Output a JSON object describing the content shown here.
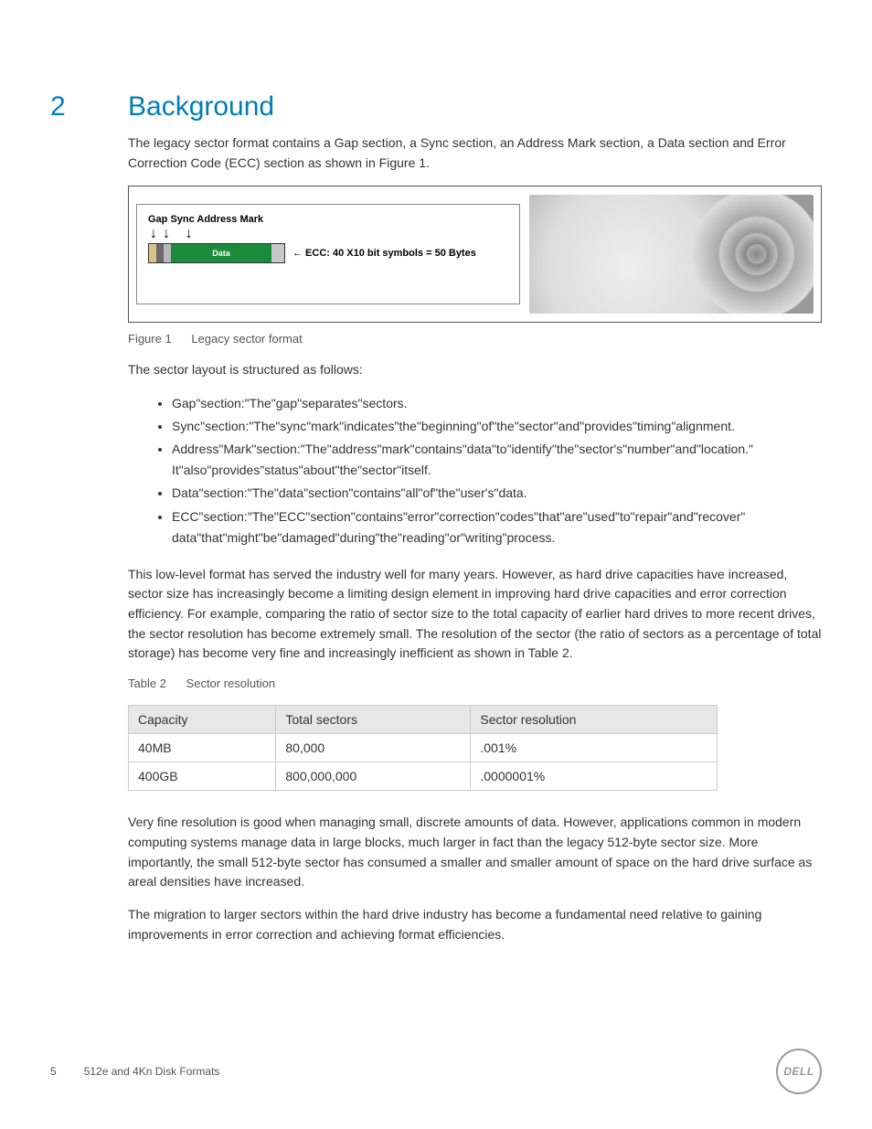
{
  "section": {
    "number": "2",
    "title": "Background"
  },
  "intro": "The legacy sector format contains a Gap section, a Sync section, an Address Mark section, a Data section and Error Correction Code (ECC) section as shown in Figure 1.",
  "figure": {
    "labels": "Gap  Sync  Address Mark",
    "data_label": "Data",
    "ecc_note": "← ECC: 40 X10 bit symbols = 50 Bytes",
    "colors": {
      "gap": "#d9c28a",
      "sync": "#6b6b6b",
      "addr": "#b8b8b8",
      "data": "#1b8a3a",
      "ecc": "#c8c8c8",
      "border": "#333333"
    },
    "caption_label": "Figure 1",
    "caption_text": "Legacy sector format"
  },
  "layout_intro": "The sector layout is structured as follows:",
  "bullets": [
    "Gap\"section:\"The\"gap\"separates\"sectors.",
    "Sync\"section:\"The\"sync\"mark\"indicates\"the\"beginning\"of\"the\"sector\"and\"provides\"timing\"alignment.",
    "Address\"Mark\"section:\"The\"address\"mark\"contains\"data\"to\"identify\"the\"sector's\"number\"and\"location.\" It\"also\"provides\"status\"about\"the\"sector\"itself.",
    "Data\"section:\"The\"data\"section\"contains\"all\"of\"the\"user's\"data.",
    "ECC\"section:\"The\"ECC\"section\"contains\"error\"correction\"codes\"that\"are\"used\"to\"repair\"and\"recover\" data\"that\"might\"be\"damaged\"during\"the\"reading\"or\"writing\"process."
  ],
  "mid_para": "This low-level format has served the industry well for many years. However, as hard drive capacities have increased, sector size has increasingly become a limiting design element in improving hard drive capacities and error correction efficiency. For example, comparing the ratio of sector size to the total capacity of earlier hard drives to more recent drives, the sector resolution has become extremely small. The resolution of the sector (the ratio of sectors as a percentage of total storage) has become very fine and increasingly inefficient as shown in Table 2.",
  "table": {
    "caption_label": "Table 2",
    "caption_text": "Sector resolution",
    "columns": [
      "Capacity",
      "Total sectors",
      "Sector resolution"
    ],
    "rows": [
      [
        "40MB",
        "80,000",
        ".001%"
      ],
      [
        "400GB",
        "800,000,000",
        ".0000001%"
      ]
    ],
    "header_bg": "#e7e7e7",
    "border_color": "#cccccc"
  },
  "para_after_table": "Very fine resolution is good when managing small, discrete amounts of data. However, applications common in modern computing systems manage data in large blocks, much larger in fact than the legacy 512-byte sector size. More importantly, the small 512-byte sector has consumed a smaller and smaller amount of space on the hard drive surface as areal densities have increased.",
  "para_last": "The migration to larger sectors within the hard drive industry has become a fundamental need relative to gaining improvements in error correction and achieving format efficiencies.",
  "footer": {
    "page_number": "5",
    "doc_title": "512e and 4Kn Disk Formats",
    "logo_text": "DELL"
  },
  "colors": {
    "accent": "#007db8",
    "text": "#333333",
    "caption": "#555555"
  }
}
